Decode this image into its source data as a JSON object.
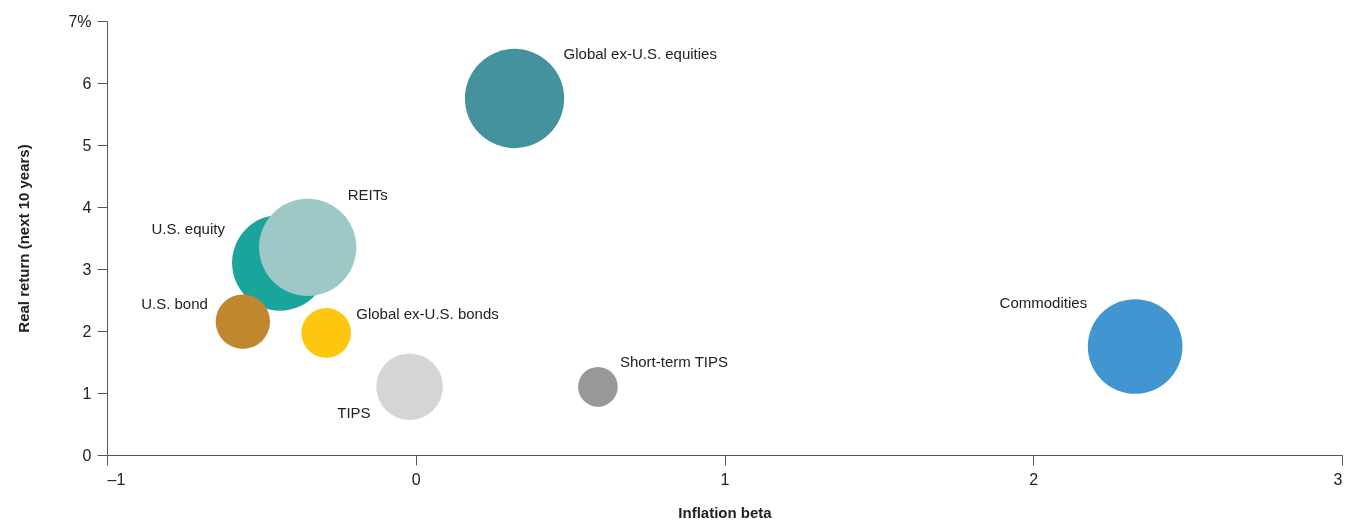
{
  "chart_data": {
    "type": "bubble",
    "xlabel": "Inflation beta",
    "ylabel": "Real return (next 10 years)",
    "xlim": [
      -1,
      3
    ],
    "ylim": [
      0,
      7
    ],
    "xticks": [
      {
        "value": -1,
        "label": "–1"
      },
      0,
      1,
      2,
      3
    ],
    "yticks": [
      0,
      1,
      2,
      3,
      4,
      5,
      6,
      {
        "value": 7,
        "label": "7%"
      }
    ],
    "grid": false,
    "legend": false,
    "series": [
      {
        "name": "Global ex-U.S. equities",
        "color": "#43929c",
        "x": [
          0.32
        ],
        "values": [
          5.75
        ],
        "sizes": [
          1.0
        ]
      },
      {
        "name": "U.S. equity",
        "color": "#1ba49c",
        "x": [
          -0.44
        ],
        "values": [
          3.1
        ],
        "sizes": [
          0.93
        ]
      },
      {
        "name": "REITs",
        "color": "#9dc8c6",
        "x": [
          -0.35
        ],
        "values": [
          3.35
        ],
        "sizes": [
          0.96
        ]
      },
      {
        "name": "U.S. bond",
        "color": "#c0872e",
        "x": [
          -0.56
        ],
        "values": [
          2.15
        ],
        "sizes": [
          0.3
        ]
      },
      {
        "name": "Global ex-U.S. bonds",
        "color": "#fdc60f",
        "x": [
          -0.29
        ],
        "values": [
          1.97
        ],
        "sizes": [
          0.25
        ]
      },
      {
        "name": "TIPS",
        "color": "#d4d5d7",
        "x": [
          -0.02
        ],
        "values": [
          1.1
        ],
        "sizes": [
          0.45
        ]
      },
      {
        "name": "Short-term TIPS",
        "color": "#97989a",
        "x": [
          0.59
        ],
        "values": [
          1.1
        ],
        "sizes": [
          0.16
        ]
      },
      {
        "name": "Commodities",
        "color": "#4196d2",
        "x": [
          2.33
        ],
        "values": [
          1.75
        ],
        "sizes": [
          0.91
        ]
      }
    ]
  }
}
